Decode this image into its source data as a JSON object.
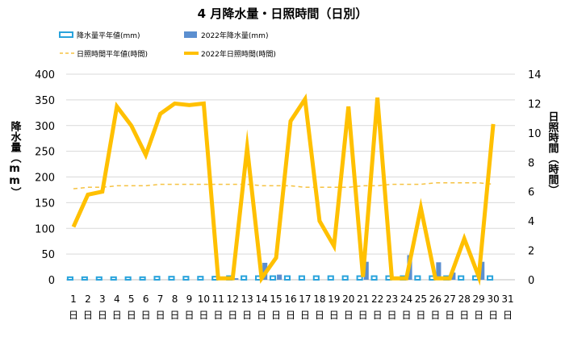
{
  "chart_data": {
    "type": "bar+line",
    "title": "4 月降水量・日照時間（日別）",
    "ylabel_left": "降水量（mm）",
    "ylabel_right": "日照時間（時間）",
    "ylim_left": [
      0,
      400
    ],
    "ylim_right": [
      0,
      14
    ],
    "yticks_left": [
      "0",
      "50",
      "100",
      "150",
      "200",
      "250",
      "300",
      "350",
      "400"
    ],
    "yticks_right": [
      "0",
      "2",
      "4",
      "6",
      "8",
      "10",
      "12",
      "14"
    ],
    "categories": [
      "1日",
      "2日",
      "3日",
      "4日",
      "5日",
      "6日",
      "7日",
      "8日",
      "9日",
      "10日",
      "11日",
      "12日",
      "13日",
      "14日",
      "15日",
      "16日",
      "17日",
      "18日",
      "19日",
      "20日",
      "21日",
      "22日",
      "23日",
      "24日",
      "25日",
      "26日",
      "27日",
      "28日",
      "29日",
      "30日",
      "31日"
    ],
    "legend": {
      "precip_normal": "降水量平年値(mm)",
      "precip_2022": "2022年降水量(mm)",
      "sun_normal": "日照時間平年値(時間)",
      "sun_2022": "2022年日照時間(時間)"
    },
    "series": [
      {
        "name": "降水量平年値(mm)",
        "axis": "left",
        "style": "hollow-bar",
        "color": "#29a3dc",
        "values": [
          5,
          5,
          5,
          5,
          5,
          5,
          6,
          6,
          6,
          6,
          6,
          7,
          7,
          7,
          7,
          7,
          7,
          7,
          7,
          7,
          7,
          7,
          7,
          7,
          7,
          7,
          7,
          7,
          7,
          7,
          null
        ]
      },
      {
        "name": "2022年降水量(mm)",
        "axis": "left",
        "style": "bar",
        "color": "#5b8fd0",
        "values": [
          0,
          0,
          0,
          0,
          0,
          0,
          0,
          0,
          0,
          0,
          0,
          3,
          0,
          33,
          10,
          0,
          0,
          0,
          0,
          0,
          35,
          0,
          0,
          48,
          0,
          34,
          14,
          0,
          35,
          0,
          null
        ]
      },
      {
        "name": "日照時間平年値(時間)",
        "axis": "right",
        "style": "dashed-line",
        "color": "#f5c242",
        "values": [
          6.2,
          6.3,
          6.3,
          6.4,
          6.4,
          6.4,
          6.5,
          6.5,
          6.5,
          6.5,
          6.5,
          6.5,
          6.5,
          6.4,
          6.4,
          6.4,
          6.3,
          6.3,
          6.3,
          6.3,
          6.4,
          6.4,
          6.5,
          6.5,
          6.5,
          6.6,
          6.6,
          6.6,
          6.6,
          6.5,
          null
        ]
      },
      {
        "name": "2022年日照時間(時間)",
        "axis": "right",
        "style": "line",
        "color": "#ffc000",
        "values": [
          3.6,
          5.8,
          6.0,
          11.8,
          10.5,
          8.5,
          11.3,
          12.0,
          11.9,
          12.0,
          0.1,
          0.1,
          9.0,
          0.1,
          1.5,
          10.8,
          12.3,
          4.0,
          2.3,
          11.8,
          0.2,
          12.4,
          0.1,
          0.1,
          4.9,
          0.1,
          0.1,
          2.8,
          0.2,
          10.6,
          null
        ]
      }
    ]
  }
}
